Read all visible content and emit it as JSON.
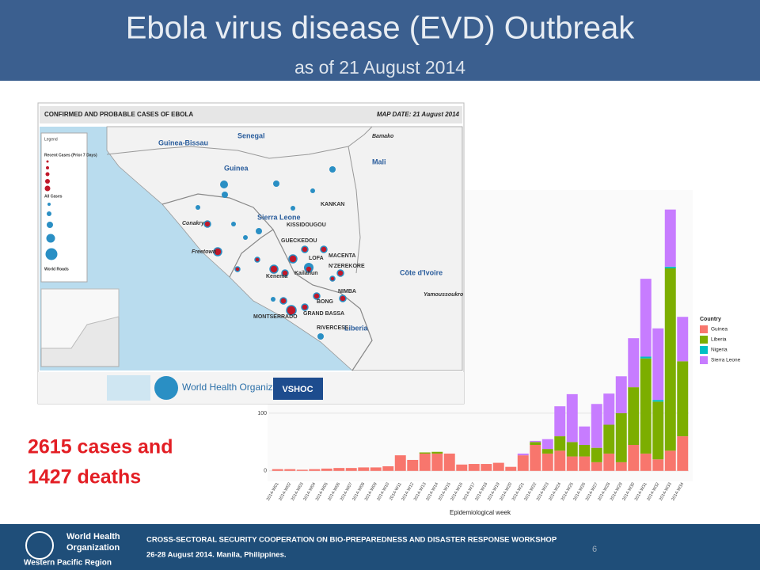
{
  "header": {
    "title": "Ebola virus disease (EVD) Outbreak",
    "subtitle": "as of 21 August 2014"
  },
  "map": {
    "title": "CONFIRMED AND PROBABLE CASES OF EBOLA",
    "date": "MAP DATE: 21 August 2014",
    "labels": [
      "Senegal",
      "Guinea-Bissau",
      "Guinea",
      "Mali",
      "Sierra Leone",
      "Liberia",
      "Côte d'Ivoire",
      "Conakry",
      "Freetown",
      "KISSIDOUGOU",
      "GUECKEDOU",
      "LOFA",
      "MACENTA",
      "N'ZEREKORE",
      "BONG",
      "NIMBA",
      "GRAND BASSA",
      "MONTSERRADO",
      "RIVERCESS",
      "KANKAN",
      "Bamako",
      "Yamoussoukro",
      "Kailahun",
      "Kenema"
    ],
    "legend": [
      "Legend",
      "Recent Cases (Prior 7 Days)",
      "All Cases",
      "World Roads"
    ],
    "org": "World Health Organization",
    "vshoc": "VSHOC"
  },
  "callout": [
    "2615 cases and",
    "1427 deaths"
  ],
  "footer": {
    "org": [
      "World Health",
      "Organization"
    ],
    "region": "Western Pacific Region",
    "line1": "CROSS-SECTORAL SECURITY COOPERATION ON BIO-PREPAREDNESS AND DISASTER RESPONSE WORKSHOP",
    "line2": "26-28 August 2014. Manila, Philippines.",
    "page": "6"
  },
  "chart_data": {
    "type": "stacked_bar",
    "x_label": "Epidemiological week",
    "legend_title": "Country",
    "categories": [
      "2014-W01",
      "2014-W02",
      "2014-W03",
      "2014-W04",
      "2014-W05",
      "2014-W06",
      "2014-W07",
      "2014-W08",
      "2014-W09",
      "2014-W10",
      "2014-W11",
      "2014-W12",
      "2014-W13",
      "2014-W14",
      "2014-W15",
      "2014-W16",
      "2014-W17",
      "2014-W18",
      "2014-W19",
      "2014-W20",
      "2014-W21",
      "2014-W22",
      "2014-W23",
      "2014-W24",
      "2014-W25",
      "2014-W26",
      "2014-W27",
      "2014-W28",
      "2014-W29",
      "2014-W30",
      "2014-W31",
      "2014-W32",
      "2014-W33",
      "2014-W34"
    ],
    "series": [
      {
        "name": "Guinea",
        "color": "#f8766d",
        "values": [
          3,
          3,
          2,
          3,
          4,
          5,
          5,
          6,
          6,
          8,
          27,
          19,
          30,
          30,
          30,
          11,
          12,
          12,
          14,
          7,
          27,
          45,
          30,
          35,
          25,
          25,
          15,
          30,
          15,
          45,
          30,
          20,
          35,
          60
        ]
      },
      {
        "name": "Liberia",
        "color": "#7cae00",
        "values": [
          0,
          0,
          0,
          0,
          0,
          0,
          0,
          0,
          0,
          0,
          0,
          0,
          2,
          3,
          0,
          0,
          0,
          0,
          0,
          0,
          0,
          5,
          8,
          25,
          25,
          20,
          25,
          50,
          85,
          100,
          165,
          100,
          316,
          130
        ]
      },
      {
        "name": "Nigeria",
        "color": "#00bfc4",
        "values": [
          0,
          0,
          0,
          0,
          0,
          0,
          0,
          0,
          0,
          0,
          0,
          0,
          0,
          0,
          0,
          0,
          0,
          0,
          0,
          0,
          0,
          0,
          0,
          0,
          0,
          0,
          0,
          0,
          0,
          0,
          3,
          3,
          3,
          0
        ]
      },
      {
        "name": "Sierra Leone",
        "color": "#c77cff",
        "values": [
          0,
          0,
          0,
          0,
          0,
          0,
          0,
          0,
          0,
          0,
          0,
          0,
          0,
          0,
          0,
          0,
          0,
          0,
          0,
          0,
          3,
          2,
          17,
          52,
          83,
          32,
          76,
          54,
          64,
          85,
          135,
          124,
          99,
          77
        ]
      }
    ],
    "ylim": [
      -14,
      480
    ],
    "yticks": [
      0,
      100
    ],
    "grid": true,
    "legend": "right"
  }
}
